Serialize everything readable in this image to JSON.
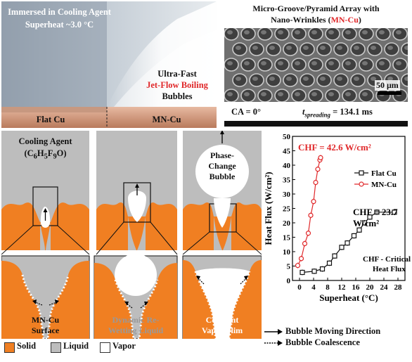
{
  "photo_left": {
    "title_line1": "Immersed in Cooling Agent",
    "title_line2": "Superheat ~3.0 °C",
    "jet_line1": "Ultra-Fast",
    "jet_line2": "Jet-Flow Boiling",
    "jet_line3": "Bubbles",
    "label_left": "Flat Cu",
    "label_right": "MN-Cu"
  },
  "photo_right": {
    "title_line1": "Micro-Groove/Pyramid Array with",
    "title_line2_a": "Nano-Wrinkles (",
    "title_line2_b": "MN-Cu",
    "title_line2_c": ")",
    "scale_bar": "50 μm",
    "ca_label": "CA = 0°",
    "t_prefix": "t",
    "t_sub": "spreading",
    "t_value": " = 134.1 ms"
  },
  "schematic": {
    "cooling_agent_line1": "Cooling Agent",
    "cooling_agent_formula": "(C",
    "formula_6a": "6",
    "formula_h": "H",
    "formula_5": "5",
    "formula_f": "F",
    "formula_9": "9",
    "formula_o": "O)",
    "phase_change_line1": "Phase-",
    "phase_change_line2": "Change",
    "phase_change_line3": "Bubble",
    "zoom1_label_line1": "MN-Cu",
    "zoom1_label_line2": "Surface",
    "zoom2_label_line1": "Dynamic Re-",
    "zoom2_label_line2": "Wetting Liquid",
    "zoom3_label_line1": "Constant",
    "zoom3_label_line2": "Vapor Flim"
  },
  "legend": {
    "solid": "Solid",
    "liquid": "Liquid",
    "vapor": "Vapor",
    "arrow1": "Bubble Moving Direction",
    "arrow2": "Bubble Coalescence",
    "colors": {
      "solid": "#f07f22",
      "liquid": "#bdbdbd",
      "vapor": "#ffffff"
    }
  },
  "chart_data": {
    "type": "scatter",
    "xlabel": "Superheat (°C)",
    "ylabel": "Heat Flux (W/cm²)",
    "xlim": [
      -2,
      30
    ],
    "ylim": [
      0,
      50
    ],
    "x_ticks": [
      0,
      4,
      8,
      12,
      16,
      20,
      24,
      28
    ],
    "y_ticks": [
      0,
      5,
      10,
      15,
      20,
      25,
      30,
      35,
      40,
      45,
      50
    ],
    "legend_placement": "top-right",
    "annotations": {
      "chf_mn_line": "CHF = 42.6 W/cm²",
      "chf_flat_line1": "CHF = 23.7",
      "chf_flat_line2": "W/cm²",
      "chf_note_line1": "CHF - Critical",
      "chf_note_line2": "Heat Flux"
    },
    "series": [
      {
        "name": "Flat Cu",
        "color": "#111111",
        "marker": "square",
        "x": [
          0.8,
          4.2,
          6.5,
          8.5,
          10.0,
          12.0,
          13.6,
          15.5,
          17.0,
          18.5,
          20.0,
          22.0,
          27.0
        ],
        "y": [
          2.8,
          3.2,
          4.0,
          6.0,
          8.5,
          11.5,
          13.0,
          15.5,
          17.5,
          20.0,
          22.0,
          23.7,
          23.7
        ]
      },
      {
        "name": "MN-Cu",
        "color": "#e0282a",
        "marker": "circle",
        "x": [
          -0.5,
          0.5,
          1.5,
          2.5,
          3.2,
          4.0,
          4.6,
          5.2,
          5.8,
          6.0
        ],
        "y": [
          5.2,
          7.6,
          12.8,
          16.4,
          22.6,
          27.4,
          34.0,
          38.6,
          41.8,
          42.6
        ]
      }
    ]
  }
}
